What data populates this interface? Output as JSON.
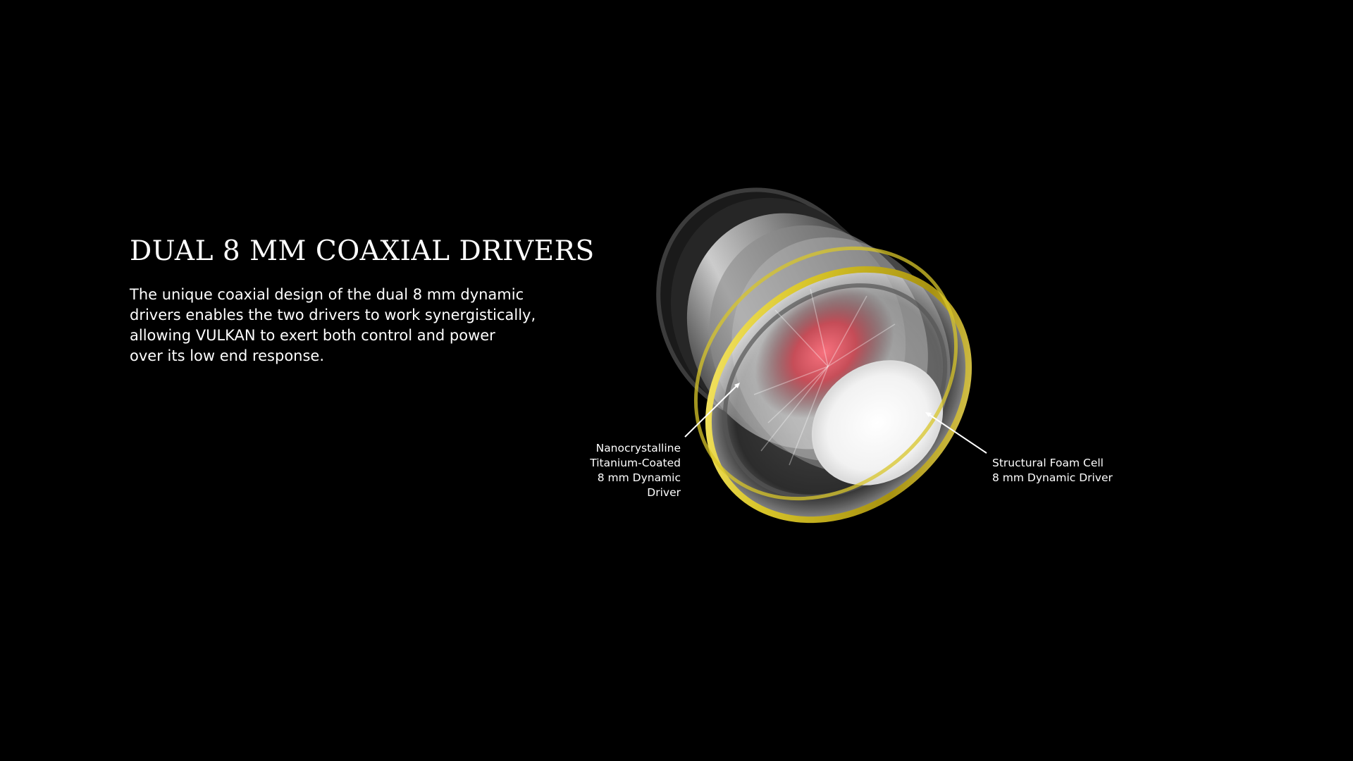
{
  "section": {
    "title": "DUAL 8 MM COAXIAL DRIVERS",
    "description_lines": [
      "The unique coaxial design of the dual 8 mm dynamic",
      "drivers enables the two drivers to work synergistically,",
      "allowing VULKAN to exert both control and power",
      "over its low end response."
    ]
  },
  "callouts": {
    "left": {
      "lines": [
        "Nanocrystalline",
        "Titanium-Coated",
        "8 mm Dynamic",
        "Driver"
      ]
    },
    "right": {
      "lines": [
        "Structural Foam Cell",
        "8 mm Dynamic Driver"
      ]
    }
  },
  "colors": {
    "background": "#000000",
    "text": "#ffffff",
    "gold_ring": "#d8c52a",
    "red_core": "#c8424e"
  },
  "illustration": {
    "name": "coaxial-driver-render"
  }
}
